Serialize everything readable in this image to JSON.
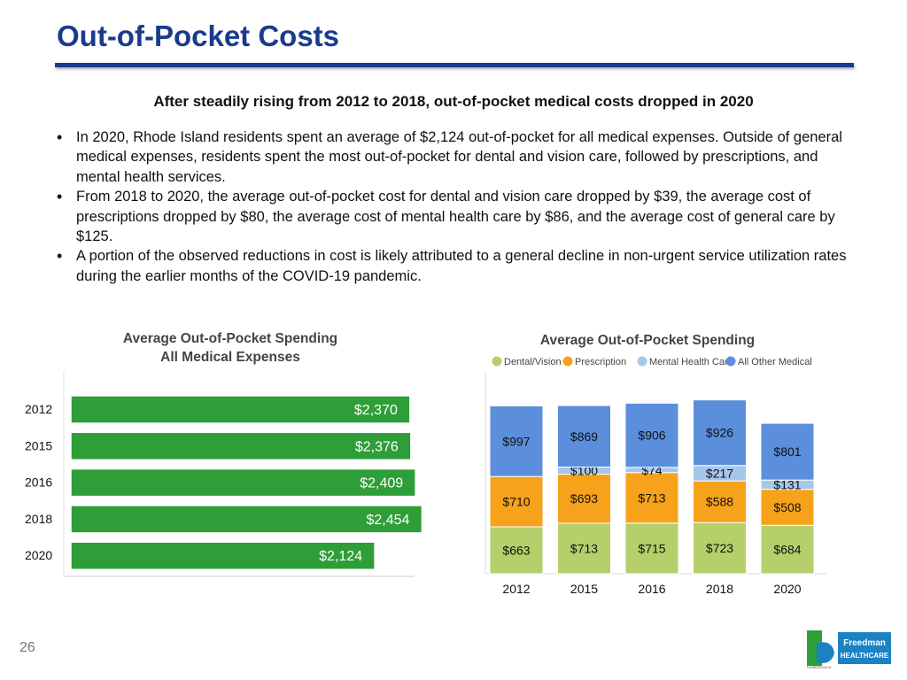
{
  "slide": {
    "title": "Out-of-Pocket Costs",
    "subtitle": "After steadily rising from 2012 to 2018, out-of-pocket medical costs dropped in 2020",
    "bullets": [
      "In 2020, Rhode Island residents spent an average of $2,124 out-of-pocket for all medical expenses. Outside of general medical expenses, residents spent the most out-of-pocket for dental and vision care, followed by prescriptions, and mental health services.",
      "From 2018 to 2020, the average out-of-pocket cost for dental and vision care dropped by $39, the average cost of prescriptions dropped by $80, the average cost of mental health care by $86, and the average cost of general care by $125.",
      "A portion of the observed reductions in cost is likely attributed to a general decline in non-urgent service utilization rates during the earlier months of the COVID-19 pandemic."
    ],
    "page_number": "26",
    "logo": {
      "brand": "Freedman",
      "sub": "HEALTHCARE",
      "tagline": "HealthSource"
    }
  },
  "colors": {
    "title_blue": "#1a3b8c",
    "bar_green": "#2e9e38",
    "dental": "#b5cf6b",
    "prescription": "#f7a21b",
    "mental": "#a7c6ec",
    "other": "#5b8fdc"
  },
  "chart_data": [
    {
      "type": "bar",
      "orientation": "horizontal",
      "title": "Average Out-of-Pocket Spending\nAll Medical Expenses",
      "title_lines": [
        "Average Out-of-Pocket Spending",
        "All Medical Expenses"
      ],
      "categories": [
        "2012",
        "2015",
        "2016",
        "2018",
        "2020"
      ],
      "values": [
        2370,
        2376,
        2409,
        2454,
        2124
      ],
      "labels": [
        "$2,370",
        "$2,376",
        "$2,409",
        "$2,454",
        "$2,124"
      ],
      "xlim": [
        0,
        2600
      ]
    },
    {
      "type": "bar",
      "stacked": true,
      "title": "Average Out-of-Pocket Spending",
      "categories": [
        "2012",
        "2015",
        "2016",
        "2018",
        "2020"
      ],
      "series": [
        {
          "name": "Dental/Vision",
          "values": [
            663,
            713,
            715,
            723,
            684
          ],
          "labels": [
            "$663",
            "$713",
            "$715",
            "$723",
            "$684"
          ]
        },
        {
          "name": "Prescription",
          "values": [
            710,
            693,
            713,
            588,
            508
          ],
          "labels": [
            "$710",
            "$693",
            "$713",
            "$588",
            "$508"
          ]
        },
        {
          "name": "Mental Health Care",
          "values": [
            0,
            100,
            74,
            217,
            131
          ],
          "labels": [
            "",
            "$100",
            "$74",
            "$217",
            "$131"
          ]
        },
        {
          "name": "All Other Medical",
          "values": [
            997,
            869,
            906,
            926,
            801
          ],
          "labels": [
            "$997",
            "$869",
            "$906",
            "$926",
            "$801"
          ]
        }
      ],
      "legend": "top"
    }
  ]
}
